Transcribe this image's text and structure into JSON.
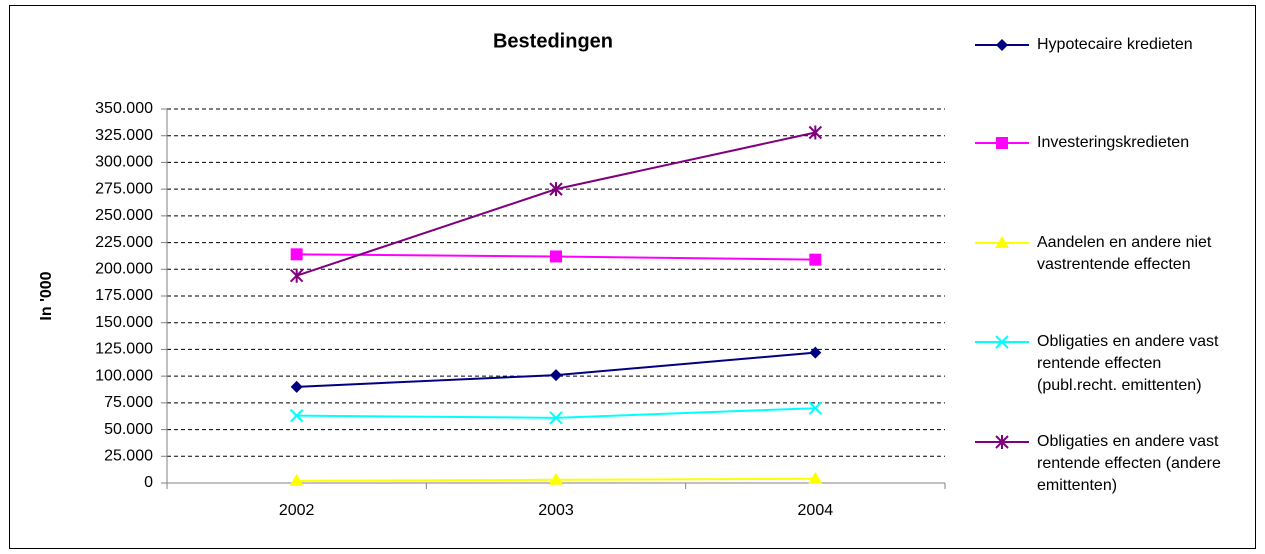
{
  "chart_data": {
    "type": "line",
    "title": "Bestedingen",
    "y_label": "In '000",
    "categories": [
      "2002",
      "2003",
      "2004"
    ],
    "series": [
      {
        "name": "Hypotecaire kredieten",
        "color": "#000080",
        "marker": "diamond",
        "values": [
          90000,
          101000,
          122000
        ]
      },
      {
        "name": "Investeringskredieten",
        "color": "#FF00FF",
        "marker": "square",
        "values": [
          214000,
          212000,
          209000
        ]
      },
      {
        "name": "Aandelen en andere niet vastrentende effecten",
        "color": "#FFFF00",
        "marker": "triangle",
        "values": [
          2000,
          3000,
          4000
        ]
      },
      {
        "name": "Obligaties en andere vast rentende effecten (publ.recht. emittenten)",
        "color": "#00FFFF",
        "marker": "x",
        "values": [
          63000,
          61000,
          70000
        ]
      },
      {
        "name": "Obligaties en andere vast rentende effecten (andere emittenten)",
        "color": "#800080",
        "marker": "star",
        "values": [
          194000,
          275000,
          328000
        ]
      }
    ],
    "ylim": [
      0,
      350000
    ],
    "yticks": [
      0,
      {
        "value": 25000,
        "label": "25.000"
      },
      {
        "value": 50000,
        "label": "50.000"
      },
      {
        "value": 75000,
        "label": "75.000"
      },
      {
        "value": 100000,
        "label": "100.000"
      },
      {
        "value": 125000,
        "label": "125.000"
      },
      {
        "value": 150000,
        "label": "150.000"
      },
      {
        "value": 175000,
        "label": "175.000"
      },
      {
        "value": 200000,
        "label": "200.000"
      },
      {
        "value": 225000,
        "label": "225.000"
      },
      {
        "value": 250000,
        "label": "250.000"
      },
      {
        "value": 275000,
        "label": "275.000"
      },
      {
        "value": 300000,
        "label": "300.000"
      },
      {
        "value": 325000,
        "label": "325.000"
      },
      {
        "value": 350000,
        "label": "350.000"
      }
    ],
    "grid": true,
    "legend": "right"
  }
}
